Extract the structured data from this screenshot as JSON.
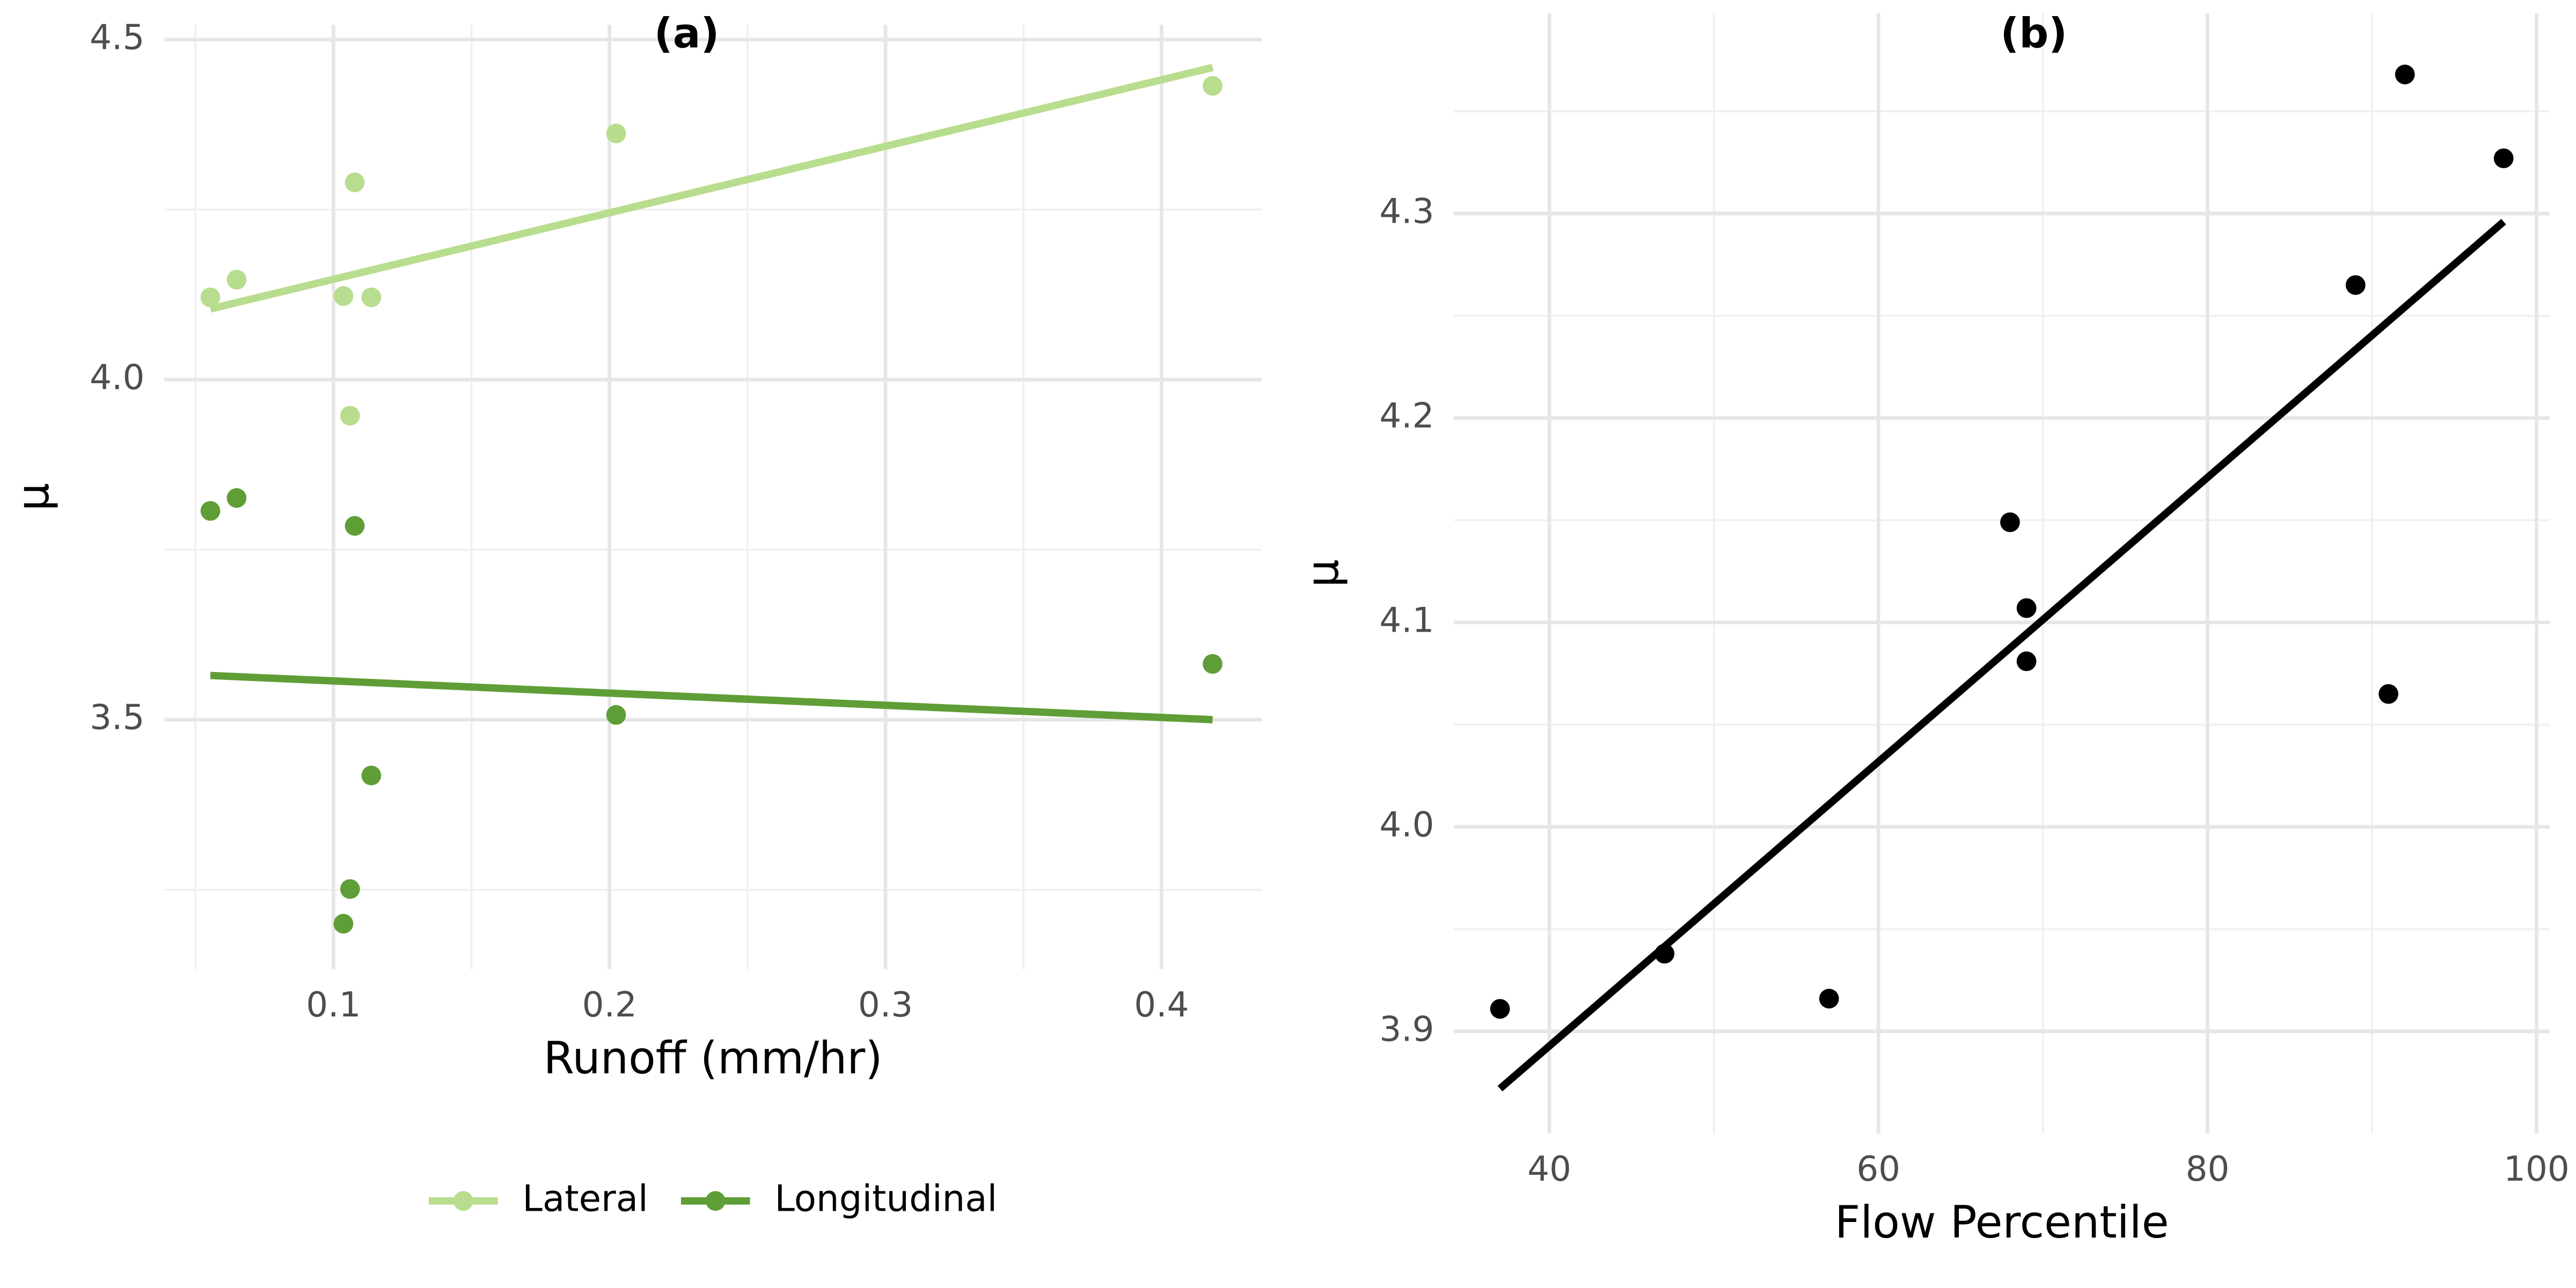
{
  "chart_data": [
    {
      "type": "scatter",
      "title": "(a)",
      "x_label": "Runoff (mm/hr)",
      "y_label": "μ",
      "xlim": [
        0.0387,
        0.4363
      ],
      "ylim": [
        3.133,
        4.522
      ],
      "xticks": [
        0.1,
        0.2,
        0.3,
        0.4
      ],
      "yticks": [
        3.5,
        {
          "value": 4,
          "label": "4.0"
        },
        4.5
      ],
      "grid": true,
      "legend": "bottom",
      "series": [
        {
          "name": "Lateral",
          "color": "#b8dd8e",
          "x": [
            0.0554,
            0.0649,
            0.1077,
            0.1036,
            0.1137,
            0.106,
            0.2024,
            0.4185
          ],
          "values": [
            4.121,
            4.147,
            4.29,
            4.123,
            4.121,
            3.947,
            4.362,
            4.432
          ],
          "fit": {
            "x": [
              0.0554,
              0.4185
            ],
            "values": [
              4.104,
              4.459
            ]
          }
        },
        {
          "name": "Longitudinal",
          "color": "#5f9e37",
          "x": [
            0.0554,
            0.0649,
            0.1077,
            0.1036,
            0.1137,
            0.106,
            0.2024,
            0.4185
          ],
          "values": [
            3.807,
            3.826,
            3.785,
            3.2,
            3.418,
            3.251,
            3.507,
            3.582
          ],
          "fit": {
            "x": [
              0.0554,
              0.4185
            ],
            "values": [
              3.565,
              3.5
            ]
          }
        }
      ]
    },
    {
      "type": "scatter",
      "title": "(b)",
      "x_label": "Flow Percentile",
      "y_label": "μ",
      "xlim": [
        34.2,
        100.8
      ],
      "ylim": [
        3.85,
        4.398
      ],
      "xticks": [
        40,
        60,
        80,
        100
      ],
      "yticks": [
        3.9,
        {
          "value": 4,
          "label": "4.0"
        },
        4.1,
        4.2,
        4.3
      ],
      "grid": true,
      "series": [
        {
          "color": "#000000",
          "x": [
            37,
            47,
            57,
            68,
            69,
            69,
            89,
            91,
            92,
            98
          ],
          "values": [
            3.911,
            3.938,
            3.916,
            4.149,
            4.107,
            4.081,
            4.265,
            4.065,
            4.368,
            4.327
          ],
          "fit": {
            "x": [
              37,
              98
            ],
            "values": [
              3.872,
              4.296
            ]
          }
        }
      ]
    }
  ]
}
